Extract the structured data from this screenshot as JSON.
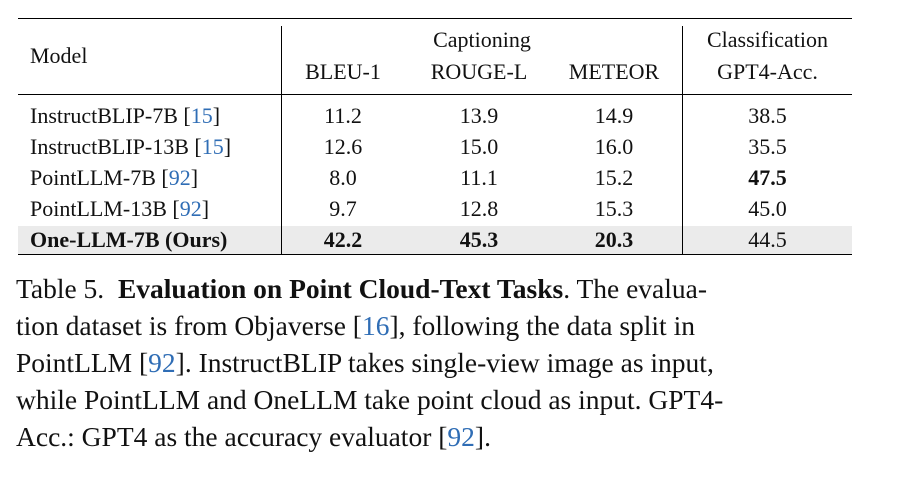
{
  "table": {
    "headers": {
      "model": "Model",
      "captioning": "Captioning",
      "classification": "Classification",
      "bleu": "BLEU-1",
      "rouge": "ROUGE-L",
      "meteor": "METEOR",
      "gpt4acc": "GPT4-Acc."
    },
    "rows": [
      {
        "model": "InstructBLIP-7B",
        "ref": "15",
        "bleu": "11.2",
        "rouge": "13.9",
        "meteor": "14.9",
        "acc": "38.5"
      },
      {
        "model": "InstructBLIP-13B",
        "ref": "15",
        "bleu": "12.6",
        "rouge": "15.0",
        "meteor": "16.0",
        "acc": "35.5"
      },
      {
        "model": "PointLLM-7B",
        "ref": "92",
        "bleu": "8.0",
        "rouge": "11.1",
        "meteor": "15.2",
        "acc": "47.5"
      },
      {
        "model": "PointLLM-13B",
        "ref": "92",
        "bleu": "9.7",
        "rouge": "12.8",
        "meteor": "15.3",
        "acc": "45.0"
      },
      {
        "model": "One-LLM-7B (Ours)",
        "bleu": "42.2",
        "rouge": "45.3",
        "meteor": "20.3",
        "acc": "44.5"
      }
    ]
  },
  "caption": {
    "label": "Table 5.",
    "title": "Evaluation on Point Cloud-Text Tasks",
    "l1_rest": ". The evalua-",
    "l2a": "tion dataset is from Objaverse [",
    "l2_ref": "16",
    "l2b": "], following the data split in",
    "l3a": "PointLLM [",
    "l3_ref": "92",
    "l3b": "]. InstructBLIP takes single-view image as input,",
    "l4": "while PointLLM and OneLLM take point cloud as input. GPT4-",
    "l5a": "Acc.: GPT4 as the accuracy evaluator [",
    "l5_ref": "92",
    "l5b": "]."
  }
}
